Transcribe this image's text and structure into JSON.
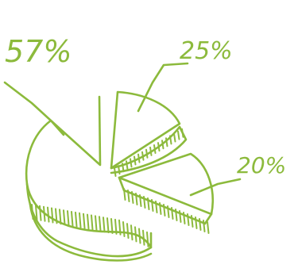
{
  "chart_data": {
    "type": "pie",
    "title": "",
    "style": "hand-drawn 3D exploded pie sketch",
    "color": "#8cba3c",
    "slices": [
      {
        "label": "57%",
        "value": 57
      },
      {
        "label": "25%",
        "value": 25
      },
      {
        "label": "20%",
        "value": 20
      }
    ]
  }
}
